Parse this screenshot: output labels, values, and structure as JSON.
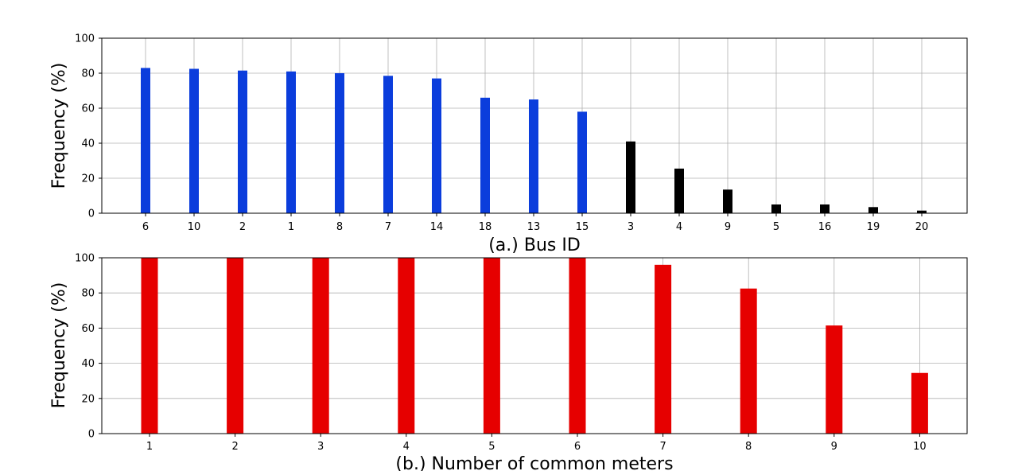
{
  "chart_data": [
    {
      "type": "bar",
      "xlabel": "(a.) Bus ID",
      "ylabel": "Frequency (%)",
      "ylim": [
        0,
        100
      ],
      "yticks": [
        0,
        20,
        40,
        60,
        80,
        100
      ],
      "grid": true,
      "categories": [
        "6",
        "10",
        "2",
        "1",
        "8",
        "7",
        "14",
        "18",
        "13",
        "15",
        "3",
        "4",
        "9",
        "5",
        "16",
        "19",
        "20"
      ],
      "values": [
        83,
        82.5,
        81.5,
        81,
        80,
        78.5,
        77,
        66,
        65,
        58,
        41,
        25.5,
        13.5,
        5,
        5,
        3.5,
        1.5
      ],
      "colors": [
        "#0b3ddc",
        "#0b3ddc",
        "#0b3ddc",
        "#0b3ddc",
        "#0b3ddc",
        "#0b3ddc",
        "#0b3ddc",
        "#0b3ddc",
        "#0b3ddc",
        "#0b3ddc",
        "#000000",
        "#000000",
        "#000000",
        "#000000",
        "#000000",
        "#000000",
        "#000000"
      ]
    },
    {
      "type": "bar",
      "xlabel": "(b.) Number of common meters",
      "ylabel": "Frequency (%)",
      "ylim": [
        0,
        100
      ],
      "yticks": [
        0,
        20,
        40,
        60,
        80,
        100
      ],
      "grid": true,
      "categories": [
        "1",
        "2",
        "3",
        "4",
        "5",
        "6",
        "7",
        "8",
        "9",
        "10"
      ],
      "values": [
        100,
        100,
        100,
        100,
        100,
        100,
        96,
        82.5,
        61.5,
        34.5
      ],
      "colors": [
        "#e60000",
        "#e60000",
        "#e60000",
        "#e60000",
        "#e60000",
        "#e60000",
        "#e60000",
        "#e60000",
        "#e60000",
        "#e60000"
      ]
    }
  ]
}
